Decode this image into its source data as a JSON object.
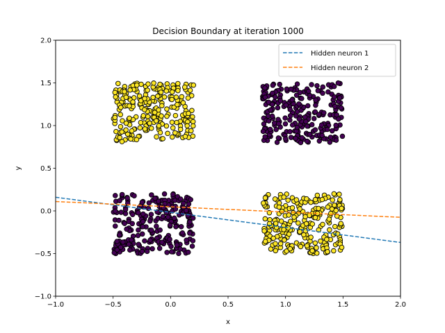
{
  "chart_data": {
    "type": "scatter",
    "title": "Decision Boundary at iteration 1000",
    "xlabel": "x",
    "ylabel": "y",
    "xlim": [
      -1.0,
      2.0
    ],
    "ylim": [
      -1.0,
      2.0
    ],
    "xticks": [
      -1.0,
      -0.5,
      0.0,
      0.5,
      1.0,
      1.5,
      2.0
    ],
    "yticks": [
      -1.0,
      -0.5,
      0.0,
      0.5,
      1.0,
      1.5,
      2.0
    ],
    "xtick_labels": [
      "−1.0",
      "−0.5",
      "0.0",
      "0.5",
      "1.0",
      "1.5",
      "2.0"
    ],
    "ytick_labels": [
      "−1.0",
      "−0.5",
      "0.0",
      "0.5",
      "1.0",
      "1.5",
      "2.0"
    ],
    "grid": false,
    "legend_placement": "top-right",
    "colors": {
      "class_1": "#fde725",
      "class_0": "#440154",
      "edge": "#000000"
    },
    "clusters": [
      {
        "class": 1,
        "color": "#fde725",
        "x_range": [
          -0.5,
          0.2
        ],
        "y_range": [
          0.8,
          1.5
        ],
        "n": 250
      },
      {
        "class": 0,
        "color": "#440154",
        "x_range": [
          0.8,
          1.5
        ],
        "y_range": [
          0.8,
          1.5
        ],
        "n": 250
      },
      {
        "class": 0,
        "color": "#440154",
        "x_range": [
          -0.5,
          0.2
        ],
        "y_range": [
          -0.5,
          0.2
        ],
        "n": 250
      },
      {
        "class": 1,
        "color": "#fde725",
        "x_range": [
          0.8,
          1.5
        ],
        "y_range": [
          -0.5,
          0.2
        ],
        "n": 250
      }
    ],
    "series": [
      {
        "name": "Hidden neuron 1",
        "style": "dashed",
        "color": "#1f77b4",
        "x": [
          -1.0,
          2.0
        ],
        "y": [
          0.16,
          -0.37
        ]
      },
      {
        "name": "Hidden neuron 2",
        "style": "dashed",
        "color": "#ff7f0e",
        "x": [
          -1.0,
          2.0
        ],
        "y": [
          0.11,
          -0.075
        ]
      }
    ]
  }
}
